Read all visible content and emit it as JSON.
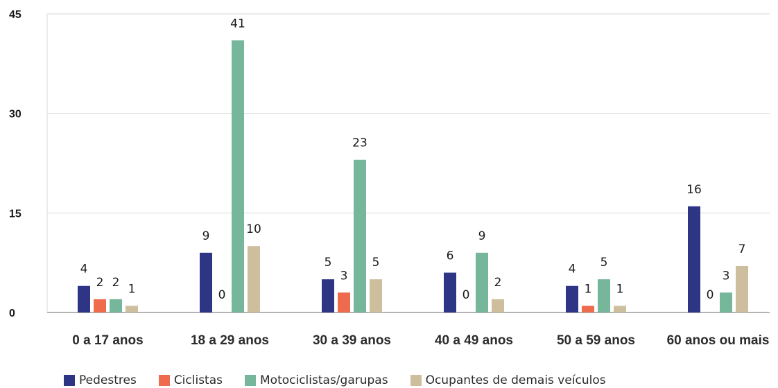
{
  "chart_data": {
    "type": "bar",
    "categories": [
      "0 a 17 anos",
      "18 a 29 anos",
      "30 a 39 anos",
      "40 a 49 anos",
      "50 a 59 anos",
      "60 anos ou mais"
    ],
    "series": [
      {
        "name": "Pedestres",
        "color": "#2e3585",
        "values": [
          4,
          9,
          5,
          6,
          4,
          16
        ]
      },
      {
        "name": "Ciclistas",
        "color": "#ee6c4d",
        "values": [
          2,
          0,
          3,
          0,
          1,
          0
        ]
      },
      {
        "name": "Motociclistas/garupas",
        "color": "#76b69a",
        "values": [
          2,
          41,
          23,
          9,
          5,
          3
        ]
      },
      {
        "name": "Ocupantes de demais veículos",
        "color": "#cdbe9e",
        "values": [
          1,
          10,
          5,
          2,
          1,
          7
        ]
      }
    ],
    "ylim": [
      0,
      45
    ],
    "yticks": [
      0,
      15,
      30,
      45
    ],
    "grid": true,
    "legend_position": "bottom"
  }
}
